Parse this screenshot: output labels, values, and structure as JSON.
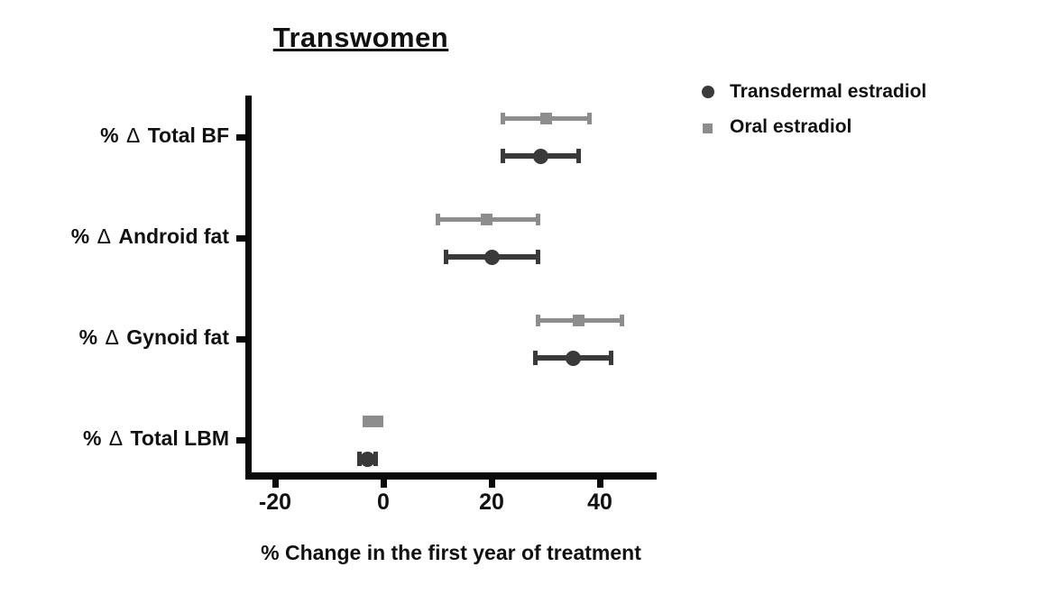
{
  "title": "Transwomen",
  "xlabel": "% Change in the first year of treatment",
  "legend": {
    "items": [
      {
        "label": "Transdermal estradiol",
        "marker": "circle",
        "color": "#3a3a3a"
      },
      {
        "label": "Oral estradiol",
        "marker": "square",
        "color": "#8d8d8d"
      }
    ]
  },
  "colors": {
    "transdermal": "#3a3a3a",
    "oral": "#8d8d8d",
    "axis": "#0a0a0a",
    "text": "#111111"
  },
  "chart_data": {
    "type": "scatter",
    "subtype": "horizontal-point-estimates-with-error-bars",
    "title": "Transwomen",
    "xlabel": "% Change in the first year of treatment",
    "categories": [
      "% Δ Total BF",
      "% Δ Android fat",
      "% Δ Gynoid fat",
      "% Δ Total LBM"
    ],
    "x_ticks": [
      -20,
      0,
      20,
      40
    ],
    "xlim": [
      -25.5,
      50.5
    ],
    "grid": false,
    "legend_position": "top-right",
    "series": [
      {
        "name": "Transdermal estradiol",
        "marker": "circle",
        "color": "#3a3a3a",
        "points": [
          {
            "category": "% Δ Total BF",
            "value": 29,
            "ci_low": 22,
            "ci_high": 36
          },
          {
            "category": "% Δ Android fat",
            "value": 20,
            "ci_low": 11.5,
            "ci_high": 28.5
          },
          {
            "category": "% Δ Gynoid fat",
            "value": 35,
            "ci_low": 28,
            "ci_high": 42
          },
          {
            "category": "% Δ Total LBM",
            "value": -3,
            "ci_low": -4.5,
            "ci_high": -1.5
          }
        ]
      },
      {
        "name": "Oral estradiol",
        "marker": "square",
        "color": "#8d8d8d",
        "points": [
          {
            "category": "% Δ Total BF",
            "value": 30,
            "ci_low": 22,
            "ci_high": 38
          },
          {
            "category": "% Δ Android fat",
            "value": 19,
            "ci_low": 10,
            "ci_high": 28.5
          },
          {
            "category": "% Δ Gynoid fat",
            "value": 36,
            "ci_low": 28.5,
            "ci_high": 44
          },
          {
            "category": "% Δ Total LBM",
            "value": -2,
            "ci_low": -3.5,
            "ci_high": -0.5
          }
        ]
      }
    ]
  }
}
